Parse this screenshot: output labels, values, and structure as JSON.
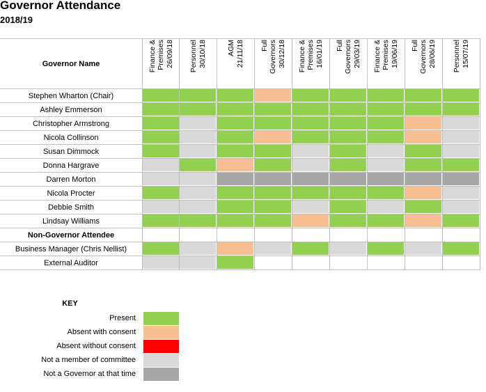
{
  "title": "Governor Attendance",
  "subtitle": "2018/19",
  "table": {
    "name_header": "Governor Name",
    "meetings": [
      "Finance &\nPremises\n26/09/18",
      "Personnel\n30/10/18",
      "AGM\n21/11/18",
      "Full\nGovernors\n30/12/18",
      "Finance &\nPremises\n16/01/19",
      "Full\nGovernors\n29/03/19",
      "Finance &\nPremises\n19/06/19",
      "Full\nGovernors\n28/06/19",
      "Personnel\n15/07/19"
    ],
    "rows": [
      {
        "name": "Stephen Wharton (Chair)",
        "bold": false,
        "cells": [
          "present",
          "present",
          "present",
          "consent",
          "present",
          "present",
          "present",
          "present",
          "present"
        ]
      },
      {
        "name": "Ashley Emmerson",
        "bold": false,
        "cells": [
          "present",
          "present",
          "present",
          "present",
          "present",
          "present",
          "present",
          "present",
          "present"
        ]
      },
      {
        "name": "Christopher Armstrong",
        "bold": false,
        "cells": [
          "present",
          "notmember",
          "present",
          "present",
          "present",
          "present",
          "present",
          "consent",
          "notmember"
        ]
      },
      {
        "name": "Nicola Collinson",
        "bold": false,
        "cells": [
          "present",
          "notmember",
          "present",
          "consent",
          "present",
          "present",
          "present",
          "consent",
          "notmember"
        ]
      },
      {
        "name": "Susan Dimmock",
        "bold": false,
        "cells": [
          "present",
          "notmember",
          "present",
          "present",
          "notmember",
          "present",
          "notmember",
          "present",
          "notmember"
        ]
      },
      {
        "name": "Donna Hargrave",
        "bold": false,
        "cells": [
          "notmember",
          "present",
          "consent",
          "present",
          "notmember",
          "present",
          "notmember",
          "present",
          "present"
        ]
      },
      {
        "name": "Darren Morton",
        "bold": false,
        "cells": [
          "notmember",
          "notmember",
          "notgov",
          "notgov",
          "notgov",
          "notgov",
          "notgov",
          "notgov",
          "notgov"
        ]
      },
      {
        "name": "Nicola Procter",
        "bold": false,
        "cells": [
          "present",
          "notmember",
          "present",
          "present",
          "present",
          "present",
          "present",
          "consent",
          "notmember"
        ]
      },
      {
        "name": "Debbie Smith",
        "bold": false,
        "cells": [
          "notmember",
          "notmember",
          "present",
          "present",
          "notmember",
          "present",
          "notmember",
          "present",
          "notmember"
        ]
      },
      {
        "name": "Lindsay Williams",
        "bold": false,
        "cells": [
          "present",
          "present",
          "present",
          "present",
          "consent",
          "present",
          "present",
          "consent",
          "present"
        ]
      },
      {
        "name": "Non-Governor Attendee",
        "bold": true,
        "cells": [
          "blank",
          "blank",
          "blank",
          "blank",
          "blank",
          "blank",
          "blank",
          "blank",
          "blank"
        ]
      },
      {
        "name": "Business Manager (Chris Nellist)",
        "bold": false,
        "cells": [
          "present",
          "notmember",
          "consent",
          "notmember",
          "present",
          "notmember",
          "present",
          "notmember",
          "present"
        ]
      },
      {
        "name": "External Auditor",
        "bold": false,
        "cells": [
          "notmember",
          "notmember",
          "present",
          "blank",
          "blank",
          "blank",
          "blank",
          "blank",
          "blank"
        ]
      }
    ]
  },
  "key": {
    "title": "KEY",
    "items": [
      {
        "label": "Present",
        "status": "present"
      },
      {
        "label": "Absent with consent",
        "status": "consent"
      },
      {
        "label": "Absent without consent",
        "status": "absent"
      },
      {
        "label": "Not a member of committee",
        "status": "notmember"
      },
      {
        "label": "Not a Governor at that time",
        "status": "notgov"
      }
    ]
  },
  "colors": {
    "present": "#92d050",
    "consent": "#f8bf92",
    "absent": "#ff0000",
    "notmember": "#d9d9d9",
    "notgov": "#a6a6a6"
  }
}
